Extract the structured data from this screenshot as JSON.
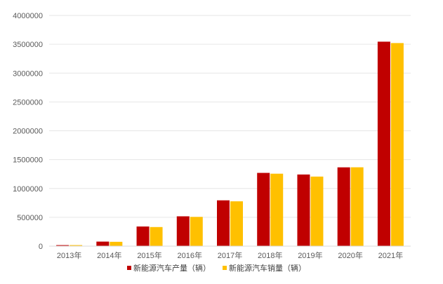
{
  "chart_data": {
    "type": "bar",
    "categories": [
      "2013年",
      "2014年",
      "2015年",
      "2016年",
      "2017年",
      "2018年",
      "2019年",
      "2020年",
      "2021年"
    ],
    "series": [
      {
        "name": "新能源汽车产量（辆）",
        "color": "#c00000",
        "values": [
          17500,
          78500,
          340500,
          517000,
          794000,
          1270000,
          1242000,
          1366000,
          3545000
        ]
      },
      {
        "name": "新能源汽车销量（辆）",
        "color": "#ffc000",
        "values": [
          17600,
          75000,
          331000,
          507000,
          777000,
          1256000,
          1206000,
          1367000,
          3521000
        ]
      }
    ],
    "ylim": [
      0,
      4000000
    ],
    "yticks": [
      "0",
      "500000",
      "1000000",
      "1500000",
      "2000000",
      "2500000",
      "3000000",
      "3500000",
      "4000000"
    ],
    "grid": true,
    "legend": "bottom"
  }
}
